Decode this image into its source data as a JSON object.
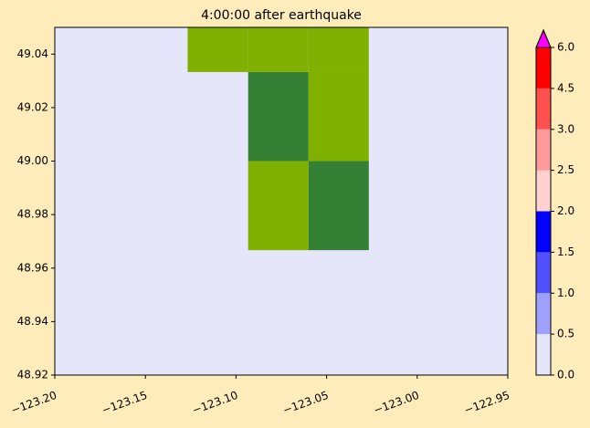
{
  "chart_data": {
    "type": "heatmap",
    "title": "4:00:00 after earthquake",
    "background": "#e6e6fa",
    "xlim": [
      -123.2,
      -122.95
    ],
    "ylim": [
      48.92,
      49.05
    ],
    "xticks": [
      {
        "value": -123.2,
        "label": "−123.20"
      },
      {
        "value": -123.15,
        "label": "−123.15"
      },
      {
        "value": -123.1,
        "label": "−123.10"
      },
      {
        "value": -123.05,
        "label": "−123.05"
      },
      {
        "value": -123.0,
        "label": "−123.00"
      },
      {
        "value": -122.95,
        "label": "−122.95"
      }
    ],
    "yticks": [
      48.92,
      48.94,
      48.96,
      48.98,
      {
        "value": 49.0,
        "label": "49.00"
      },
      49.02,
      49.04
    ],
    "cells": [
      {
        "x": [
          -123.1267,
          -123.0933
        ],
        "y": [
          49.0333,
          49.05
        ],
        "color": "#80b000"
      },
      {
        "x": [
          -123.0933,
          -123.06
        ],
        "y": [
          49.0333,
          49.05
        ],
        "color": "#80b000"
      },
      {
        "x": [
          -123.06,
          -123.0267
        ],
        "y": [
          49.0333,
          49.05
        ],
        "color": "#80b000"
      },
      {
        "x": [
          -123.0933,
          -123.06
        ],
        "y": [
          49.0,
          49.0333
        ],
        "color": "#348034"
      },
      {
        "x": [
          -123.06,
          -123.0267
        ],
        "y": [
          49.0,
          49.0333
        ],
        "color": "#80b000"
      },
      {
        "x": [
          -123.0933,
          -123.06
        ],
        "y": [
          48.9667,
          49.0
        ],
        "color": "#80b000"
      },
      {
        "x": [
          -123.06,
          -123.0267
        ],
        "y": [
          48.9667,
          49.0
        ],
        "color": "#348034"
      }
    ],
    "colorbar": {
      "levels": [
        0,
        0.5,
        1,
        1.5,
        2,
        2.5,
        3,
        4.5,
        6
      ],
      "colors": [
        "#e6e6fa",
        "#a0a0ff",
        "#5050ff",
        "#0000ff",
        "#ffd0d0",
        "#ff9a9a",
        "#ff5050",
        "#ff0000"
      ],
      "extend_color": "#ff00ff",
      "ticks": [
        {
          "value": 0,
          "label": "0.0"
        },
        {
          "value": 0.5,
          "label": "0.5"
        },
        {
          "value": 1,
          "label": "1.0"
        },
        {
          "value": 1.5,
          "label": "1.5"
        },
        {
          "value": 2,
          "label": "2.0"
        },
        {
          "value": 2.5,
          "label": "2.5"
        },
        {
          "value": 3,
          "label": "3.0"
        },
        {
          "value": 4.5,
          "label": "4.5"
        },
        {
          "value": 6,
          "label": "6.0"
        }
      ]
    }
  }
}
